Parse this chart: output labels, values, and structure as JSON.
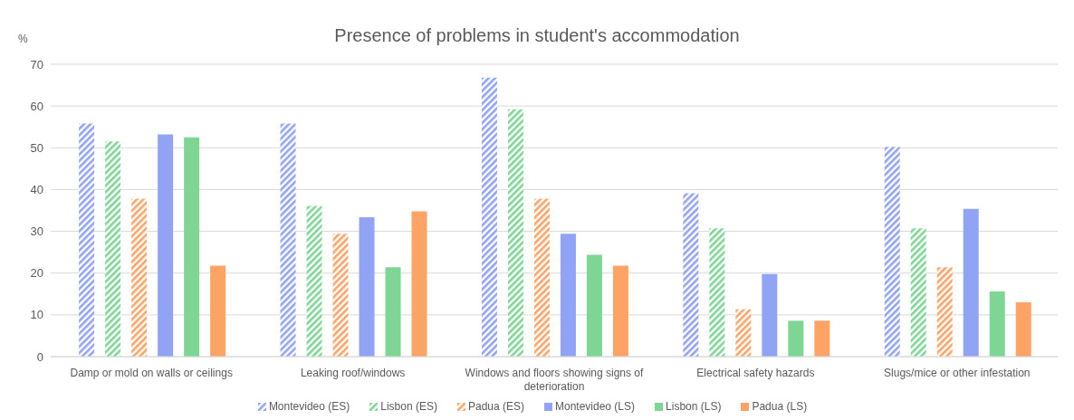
{
  "chart_data": {
    "type": "bar",
    "title": "Presence of problems in student's accommodation",
    "ylabel": "%",
    "categories": [
      "Damp or mold on walls or ceilings",
      "Leaking roof/windows",
      "Windows and floors showing signs of deterioration",
      "Electrical safety hazards",
      "Slugs/mice or other infestation"
    ],
    "series": [
      {
        "name": "Montevideo (ES)",
        "color": "#91a3f5",
        "values": [
          55.8,
          55.8,
          66.8,
          39.1,
          50.2
        ]
      },
      {
        "name": "Lisbon (ES)",
        "color": "#7dd693",
        "values": [
          51.5,
          36.1,
          59.2,
          30.7,
          30.7
        ]
      },
      {
        "name": "Padua (ES)",
        "color": "#fca365",
        "values": [
          37.8,
          29.4,
          37.8,
          11.3,
          21.4
        ]
      },
      {
        "name": "Montevideo (LS)",
        "color": "#91a3f5",
        "values": [
          53.2,
          33.4,
          29.4,
          19.8,
          35.4
        ]
      },
      {
        "name": "Lisbon (LS)",
        "color": "#7dd693",
        "values": [
          52.5,
          21.4,
          24.4,
          8.6,
          15.6
        ]
      },
      {
        "name": "Padua (LS)",
        "color": "#fca365",
        "values": [
          21.8,
          34.8,
          21.8,
          8.6,
          13.0
        ]
      }
    ],
    "ylim": [
      0,
      70
    ],
    "yticks": [
      0,
      10,
      20,
      30,
      40,
      50,
      60,
      70
    ],
    "grid": "y",
    "legend": "bottom"
  }
}
